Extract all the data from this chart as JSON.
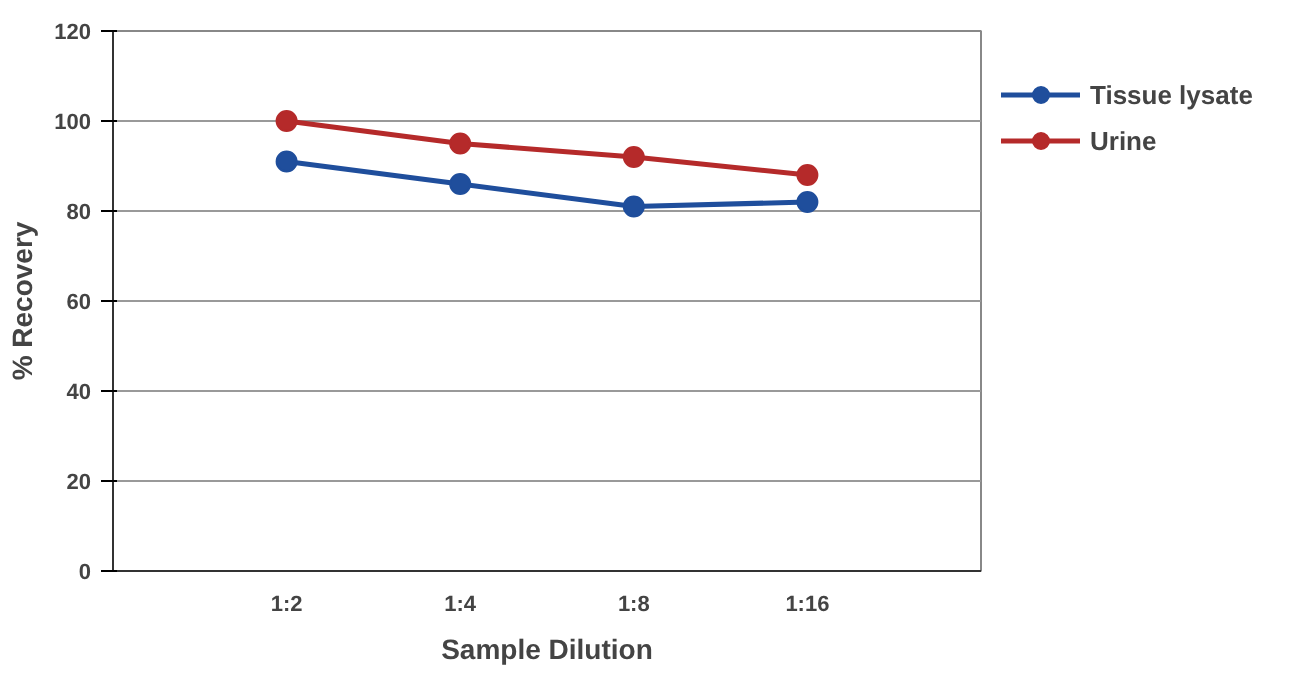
{
  "chart_data": {
    "type": "line",
    "xlabel": "Sample Dilution",
    "ylabel": "% Recovery",
    "categories": [
      "1:2",
      "1:4",
      "1:8",
      "1:16"
    ],
    "series": [
      {
        "name": "Tissue lysate",
        "color": "#1f4e9c",
        "values": [
          91,
          86,
          81,
          82
        ]
      },
      {
        "name": "Urine",
        "color": "#b52a2a",
        "values": [
          100,
          95,
          92,
          88
        ]
      }
    ],
    "ylim": [
      0,
      120
    ],
    "yticks": [
      0,
      20,
      40,
      60,
      80,
      100,
      120
    ],
    "grid": "y",
    "legend": "right",
    "marker": "circle",
    "line_style": "solid"
  }
}
